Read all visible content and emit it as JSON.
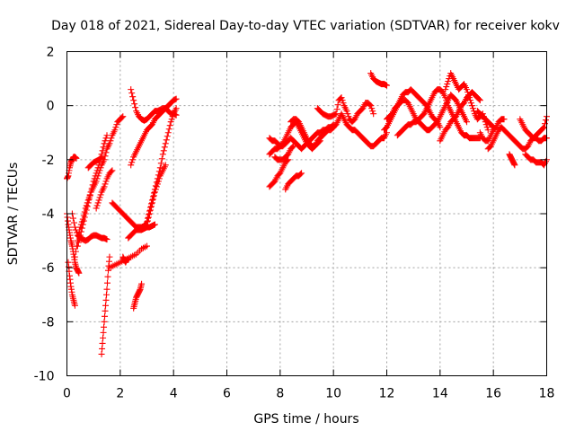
{
  "chart_data": {
    "type": "scatter",
    "title": "Day 018 of 2021, Sidereal Day-to-day VTEC variation (SDTVAR) for receiver kokv",
    "xlabel": "GPS time / hours",
    "ylabel": "SDTVAR / TECUs",
    "xlim": [
      0,
      18
    ],
    "ylim": [
      -10,
      2
    ],
    "xticks": [
      0,
      2,
      4,
      6,
      8,
      10,
      12,
      14,
      16,
      18
    ],
    "yticks": [
      -10,
      -8,
      -6,
      -4,
      -2,
      0,
      2
    ],
    "grid": true,
    "marker": "+",
    "color": "#ff0000",
    "series": [
      {
        "name": "t1",
        "x": [
          0.0,
          0.05,
          0.1,
          0.15,
          0.2,
          0.25,
          0.3,
          0.35
        ],
        "y": [
          -2.7,
          -2.6,
          -2.3,
          -2.1,
          -2.0,
          -1.9,
          -1.9,
          -1.95
        ]
      },
      {
        "name": "t2",
        "x": [
          0.0,
          0.05,
          0.1,
          0.15,
          0.2,
          0.25,
          0.3,
          0.35,
          0.4,
          0.45
        ],
        "y": [
          -4.0,
          -4.4,
          -4.7,
          -5.0,
          -5.2,
          -5.5,
          -5.8,
          -6.0,
          -6.1,
          -6.2
        ]
      },
      {
        "name": "t3",
        "x": [
          0.05,
          0.1,
          0.15,
          0.2,
          0.25,
          0.3
        ],
        "y": [
          -5.8,
          -6.3,
          -6.7,
          -7.0,
          -7.2,
          -7.4
        ]
      },
      {
        "name": "t4",
        "x": [
          0.2,
          0.3,
          0.4,
          0.5,
          0.6,
          0.7,
          0.8,
          0.9,
          1.0,
          1.1,
          1.2,
          1.3,
          1.4,
          1.5
        ],
        "y": [
          -4.0,
          -4.5,
          -4.8,
          -4.9,
          -4.95,
          -5.0,
          -4.95,
          -4.85,
          -4.8,
          -4.8,
          -4.85,
          -4.9,
          -4.9,
          -4.95
        ]
      },
      {
        "name": "t5",
        "x": [
          0.3,
          0.4,
          0.5,
          0.6,
          0.7,
          0.8,
          0.9,
          1.0,
          1.1,
          1.2,
          1.3,
          1.4,
          1.5,
          1.6,
          1.7,
          1.8,
          1.9,
          2.0,
          2.1
        ],
        "y": [
          -5.6,
          -5.0,
          -4.5,
          -4.2,
          -3.8,
          -3.5,
          -3.2,
          -3.0,
          -2.8,
          -2.5,
          -2.2,
          -2.0,
          -1.6,
          -1.4,
          -1.1,
          -0.9,
          -0.6,
          -0.5,
          -0.4
        ]
      },
      {
        "name": "t6",
        "x": [
          0.4,
          0.5,
          0.6,
          0.7,
          0.8,
          0.9,
          1.0,
          1.1,
          1.2,
          1.3,
          1.4,
          1.5
        ],
        "y": [
          -5.2,
          -4.8,
          -4.4,
          -4.0,
          -3.6,
          -3.2,
          -2.8,
          -2.5,
          -2.2,
          -1.8,
          -1.4,
          -1.1
        ]
      },
      {
        "name": "t7",
        "x": [
          0.8,
          0.9,
          1.0,
          1.1,
          1.2,
          1.3
        ],
        "y": [
          -2.3,
          -2.2,
          -2.1,
          -2.05,
          -2.0,
          -1.9
        ]
      },
      {
        "name": "t8",
        "x": [
          1.1,
          1.2,
          1.3,
          1.4,
          1.5,
          1.6,
          1.7
        ],
        "y": [
          -3.8,
          -3.5,
          -3.2,
          -3.0,
          -2.7,
          -2.5,
          -2.4
        ]
      },
      {
        "name": "t9",
        "x": [
          1.3,
          1.35,
          1.4,
          1.45,
          1.5,
          1.55,
          1.6
        ],
        "y": [
          -9.2,
          -8.6,
          -8.0,
          -7.4,
          -6.8,
          -6.1,
          -5.6
        ]
      },
      {
        "name": "t10",
        "x": [
          1.7,
          1.8,
          1.9,
          2.0,
          2.1,
          2.2,
          2.3,
          2.4,
          2.5,
          2.6,
          2.7,
          2.8,
          2.9,
          3.0,
          3.1,
          3.2,
          3.3,
          3.4,
          3.5,
          3.6,
          3.7
        ],
        "y": [
          -3.6,
          -3.7,
          -3.8,
          -3.9,
          -4.0,
          -4.1,
          -4.2,
          -4.3,
          -4.4,
          -4.5,
          -4.5,
          -4.5,
          -4.45,
          -4.4,
          -4.0,
          -3.6,
          -3.2,
          -2.9,
          -2.6,
          -2.4,
          -2.2
        ]
      },
      {
        "name": "t11",
        "x": [
          2.1,
          2.15,
          2.2,
          2.25,
          2.3
        ],
        "y": [
          -5.6,
          -5.7,
          -5.8,
          -5.7,
          -5.7
        ]
      },
      {
        "name": "t12",
        "x": [
          2.4,
          2.5,
          2.6,
          2.7,
          2.8,
          2.9,
          3.0,
          3.1,
          3.2,
          3.3,
          3.4,
          3.5,
          3.6,
          3.7,
          3.8,
          3.9,
          4.0,
          4.1
        ],
        "y": [
          -2.2,
          -1.9,
          -1.7,
          -1.5,
          -1.3,
          -1.1,
          -0.9,
          -0.8,
          -0.7,
          -0.5,
          -0.4,
          -0.3,
          -0.2,
          -0.1,
          0.0,
          0.1,
          0.2,
          0.25
        ]
      },
      {
        "name": "t13",
        "x": [
          2.5,
          2.55,
          2.6,
          2.65,
          2.7,
          2.75,
          2.8
        ],
        "y": [
          -7.5,
          -7.3,
          -7.1,
          -7.0,
          -6.9,
          -6.8,
          -6.6
        ]
      },
      {
        "name": "t14",
        "x": [
          2.4,
          2.5,
          2.6,
          2.7,
          2.8,
          2.9,
          3.0,
          3.1,
          3.2,
          3.3,
          3.4,
          3.5,
          3.6,
          3.7,
          3.8,
          3.9,
          4.0,
          4.1
        ],
        "y": [
          0.6,
          0.2,
          -0.2,
          -0.4,
          -0.5,
          -0.55,
          -0.5,
          -0.4,
          -0.3,
          -0.2,
          -0.2,
          -0.15,
          -0.1,
          -0.1,
          -0.2,
          -0.3,
          -0.3,
          -0.35
        ]
      },
      {
        "name": "t15",
        "x": [
          3.0,
          3.1,
          3.2,
          3.3,
          3.4,
          3.5,
          3.6,
          3.7,
          3.8,
          3.9,
          4.0,
          4.1
        ],
        "y": [
          -4.3,
          -3.9,
          -3.5,
          -3.1,
          -2.7,
          -2.3,
          -1.8,
          -1.4,
          -1.0,
          -0.6,
          -0.3,
          -0.1
        ]
      },
      {
        "name": "t16",
        "x": [
          1.6,
          1.8,
          2.0,
          2.2,
          2.4,
          2.6,
          2.8,
          3.0
        ],
        "y": [
          -6.0,
          -5.9,
          -5.8,
          -5.7,
          -5.6,
          -5.5,
          -5.3,
          -5.2
        ]
      },
      {
        "name": "t17",
        "x": [
          2.3,
          2.4,
          2.5,
          2.6,
          2.7,
          2.8,
          2.9,
          3.0,
          3.1,
          3.2,
          3.3
        ],
        "y": [
          -4.9,
          -4.8,
          -4.7,
          -4.6,
          -4.6,
          -4.6,
          -4.55,
          -4.5,
          -4.5,
          -4.45,
          -4.4
        ]
      },
      {
        "name": "t18",
        "x": [
          7.6,
          7.7,
          7.8,
          7.9,
          8.0,
          8.1,
          8.2,
          8.3,
          8.4,
          8.5,
          8.6,
          8.7,
          8.8,
          8.9,
          9.0,
          9.1,
          9.2,
          9.3,
          9.4,
          9.5,
          9.6,
          9.7,
          9.8,
          9.9,
          10.0
        ],
        "y": [
          -1.2,
          -1.3,
          -1.3,
          -1.4,
          -1.5,
          -1.5,
          -1.4,
          -1.3,
          -1.2,
          -1.3,
          -1.4,
          -1.5,
          -1.6,
          -1.5,
          -1.4,
          -1.3,
          -1.2,
          -1.1,
          -1.0,
          -1.0,
          -0.9,
          -0.9,
          -0.8,
          -0.8,
          -0.7
        ]
      },
      {
        "name": "t19",
        "x": [
          7.6,
          7.7,
          7.8,
          7.9,
          8.0,
          8.1,
          8.2,
          8.3,
          8.4,
          8.5,
          8.6,
          8.7,
          8.8,
          8.9,
          9.0,
          9.1,
          9.2,
          9.3,
          9.4,
          9.5,
          9.6,
          9.7,
          9.8,
          9.9,
          10.0
        ],
        "y": [
          -1.8,
          -1.7,
          -1.6,
          -1.6,
          -1.5,
          -1.4,
          -1.2,
          -1.0,
          -0.8,
          -0.7,
          -0.6,
          -0.8,
          -1.0,
          -1.2,
          -1.4,
          -1.5,
          -1.6,
          -1.5,
          -1.3,
          -1.2,
          -1.1,
          -1.0,
          -0.9,
          -0.9,
          -0.8
        ]
      },
      {
        "name": "t20",
        "x": [
          7.6,
          7.7,
          7.8,
          7.9,
          8.0,
          8.1,
          8.2,
          8.3
        ],
        "y": [
          -3.0,
          -2.9,
          -2.8,
          -2.6,
          -2.5,
          -2.3,
          -2.1,
          -2.0
        ]
      },
      {
        "name": "t21",
        "x": [
          7.8,
          7.9,
          8.0,
          8.1,
          8.2,
          8.3,
          8.4,
          8.5
        ],
        "y": [
          -1.9,
          -2.0,
          -2.0,
          -2.0,
          -1.9,
          -1.8,
          -1.6,
          -1.5
        ]
      },
      {
        "name": "t22",
        "x": [
          8.2,
          8.3,
          8.4,
          8.5,
          8.6,
          8.7,
          8.8
        ],
        "y": [
          -3.1,
          -2.9,
          -2.8,
          -2.7,
          -2.6,
          -2.6,
          -2.5
        ]
      },
      {
        "name": "t23",
        "x": [
          8.4,
          8.5,
          8.6,
          8.7,
          8.8,
          8.9,
          9.0,
          9.1,
          9.2,
          9.3,
          9.4,
          9.5
        ],
        "y": [
          -0.6,
          -0.5,
          -0.5,
          -0.6,
          -0.8,
          -1.0,
          -1.2,
          -1.4,
          -1.5,
          -1.5,
          -1.4,
          -1.3
        ]
      },
      {
        "name": "t24",
        "x": [
          9.4,
          9.5,
          9.6,
          9.7,
          9.8,
          9.9,
          10.0,
          10.1,
          10.2,
          10.3,
          10.4,
          10.5,
          10.6,
          10.7,
          10.8,
          10.9,
          11.0,
          11.1,
          11.2,
          11.3,
          11.4,
          11.5
        ],
        "y": [
          -0.1,
          -0.2,
          -0.3,
          -0.35,
          -0.4,
          -0.4,
          -0.35,
          -0.3,
          0.2,
          0.3,
          0.0,
          -0.2,
          -0.5,
          -0.6,
          -0.5,
          -0.3,
          -0.2,
          -0.1,
          0.1,
          0.1,
          0.0,
          -0.3
        ]
      },
      {
        "name": "t25",
        "x": [
          10.0,
          10.1,
          10.2,
          10.3,
          10.4,
          10.5,
          10.6,
          10.7,
          10.8,
          10.9,
          11.0,
          11.1,
          11.2,
          11.3,
          11.4,
          11.5,
          11.6,
          11.7,
          11.8,
          11.9,
          12.0
        ],
        "y": [
          -0.8,
          -0.7,
          -0.5,
          -0.3,
          -0.5,
          -0.7,
          -0.8,
          -0.9,
          -0.9,
          -1.0,
          -1.1,
          -1.2,
          -1.3,
          -1.4,
          -1.5,
          -1.5,
          -1.4,
          -1.3,
          -1.2,
          -1.2,
          -1.0
        ]
      },
      {
        "name": "t26",
        "x": [
          11.4,
          11.5,
          11.6,
          11.7,
          11.8,
          11.9,
          12.0
        ],
        "y": [
          1.2,
          1.0,
          0.9,
          0.85,
          0.8,
          0.8,
          0.75
        ]
      },
      {
        "name": "t27",
        "x": [
          11.9,
          12.0,
          12.1,
          12.2,
          12.3,
          12.4,
          12.5,
          12.6,
          12.7,
          12.8,
          12.9,
          13.0,
          13.1,
          13.2,
          13.3,
          13.4,
          13.5,
          13.6,
          13.7,
          13.8,
          13.9,
          14.0
        ],
        "y": [
          -0.9,
          -0.8,
          -0.6,
          -0.4,
          -0.2,
          0.0,
          0.2,
          0.4,
          0.5,
          0.5,
          0.6,
          0.5,
          0.4,
          0.3,
          0.2,
          0.1,
          0.0,
          -0.2,
          -0.4,
          -0.5,
          -0.6,
          -0.8
        ]
      },
      {
        "name": "t28",
        "x": [
          12.0,
          12.1,
          12.2,
          12.3,
          12.4,
          12.5,
          12.6,
          12.7,
          12.8,
          12.9,
          13.0,
          13.1,
          13.2,
          13.3,
          13.4,
          13.5,
          13.6,
          13.7,
          13.8,
          13.9,
          14.0,
          14.1,
          14.2,
          14.3,
          14.4,
          14.5,
          14.6,
          14.7,
          14.8,
          14.9,
          15.0
        ],
        "y": [
          -0.5,
          -0.4,
          -0.3,
          -0.1,
          0.0,
          0.1,
          0.2,
          0.2,
          0.1,
          -0.1,
          -0.3,
          -0.5,
          -0.6,
          -0.7,
          -0.8,
          -0.9,
          -0.9,
          -0.8,
          -0.7,
          -0.6,
          -0.4,
          -0.2,
          0.0,
          0.2,
          0.4,
          0.3,
          0.2,
          0.0,
          -0.2,
          -0.4,
          -0.6
        ]
      },
      {
        "name": "t29",
        "x": [
          12.4,
          12.5,
          12.6,
          12.7,
          12.8,
          12.9,
          13.0,
          13.1,
          13.2,
          13.3,
          13.4,
          13.5,
          13.6,
          13.7,
          13.8,
          13.9,
          14.0,
          14.1,
          14.2,
          14.3,
          14.4,
          14.5,
          14.6,
          14.7,
          14.8,
          14.9,
          15.0,
          15.1,
          15.2,
          15.3,
          15.4,
          15.5
        ],
        "y": [
          -1.1,
          -1.0,
          -0.9,
          -0.8,
          -0.7,
          -0.7,
          -0.6,
          -0.6,
          -0.5,
          -0.4,
          -0.3,
          -0.1,
          0.1,
          0.3,
          0.5,
          0.6,
          0.6,
          0.5,
          0.3,
          0.0,
          -0.2,
          -0.4,
          -0.6,
          -0.8,
          -1.0,
          -1.1,
          -1.1,
          -1.2,
          -1.2,
          -1.2,
          -1.2,
          -1.2
        ]
      },
      {
        "name": "t30",
        "x": [
          14.2,
          14.3,
          14.4,
          14.5,
          14.6,
          14.7,
          14.8,
          14.9,
          15.0,
          15.1,
          15.2,
          15.3,
          15.4,
          15.5,
          15.6,
          15.7,
          15.8
        ],
        "y": [
          0.6,
          0.9,
          1.2,
          1.0,
          0.8,
          0.6,
          0.7,
          0.8,
          0.6,
          0.3,
          0.0,
          -0.3,
          -0.5,
          -0.4,
          -0.3,
          -0.6,
          -0.9
        ]
      },
      {
        "name": "t31",
        "x": [
          14.0,
          14.1,
          14.2,
          14.3,
          14.4,
          14.5,
          14.6,
          14.7,
          14.8,
          14.9,
          15.0,
          15.1,
          15.2,
          15.3,
          15.4,
          15.5
        ],
        "y": [
          -1.3,
          -1.1,
          -0.9,
          -0.8,
          -0.6,
          -0.5,
          -0.4,
          -0.2,
          0.0,
          0.1,
          0.3,
          0.4,
          0.5,
          0.4,
          0.3,
          0.2
        ]
      },
      {
        "name": "t32",
        "x": [
          15.5,
          15.6,
          15.7,
          15.8,
          15.9,
          16.0,
          16.1,
          16.2,
          16.3,
          16.4
        ],
        "y": [
          -1.0,
          -1.2,
          -1.3,
          -1.3,
          -1.1,
          -0.9,
          -0.8,
          -0.6,
          -0.5,
          -0.5
        ]
      },
      {
        "name": "t33",
        "x": [
          15.4,
          15.5,
          15.6,
          15.7,
          15.8,
          15.9,
          16.0
        ],
        "y": [
          -0.2,
          -0.3,
          -0.4,
          -0.5,
          -0.6,
          -0.7,
          -0.8
        ]
      },
      {
        "name": "t34",
        "x": [
          15.8,
          15.9,
          16.0,
          16.1,
          16.2,
          16.3,
          16.4,
          16.5,
          16.6,
          16.7,
          16.8,
          16.9,
          17.0,
          17.1,
          17.2,
          17.3,
          17.4,
          17.5,
          17.6,
          17.7,
          17.8,
          17.9,
          18.0
        ],
        "y": [
          -1.6,
          -1.5,
          -1.3,
          -1.1,
          -0.9,
          -0.8,
          -0.9,
          -1.0,
          -1.1,
          -1.2,
          -1.3,
          -1.4,
          -1.5,
          -1.6,
          -1.6,
          -1.5,
          -1.3,
          -1.2,
          -1.1,
          -1.0,
          -0.9,
          -0.8,
          -0.4
        ]
      },
      {
        "name": "t35",
        "x": [
          16.6,
          16.65,
          16.7,
          16.75,
          16.8
        ],
        "y": [
          -1.8,
          -1.9,
          -2.0,
          -2.1,
          -2.2
        ]
      },
      {
        "name": "t36",
        "x": [
          17.2,
          17.3,
          17.4,
          17.5,
          17.6,
          17.7,
          17.8,
          17.9,
          18.0
        ],
        "y": [
          -1.8,
          -1.9,
          -2.0,
          -2.0,
          -2.1,
          -2.1,
          -2.1,
          -2.2,
          -2.0
        ]
      },
      {
        "name": "t37",
        "x": [
          17.0,
          17.1,
          17.2,
          17.3,
          17.4,
          17.5,
          17.6,
          17.7,
          17.8,
          17.9,
          18.0
        ],
        "y": [
          -0.5,
          -0.7,
          -0.9,
          -1.0,
          -1.1,
          -1.2,
          -1.2,
          -1.3,
          -1.3,
          -1.2,
          -1.2
        ]
      }
    ]
  }
}
